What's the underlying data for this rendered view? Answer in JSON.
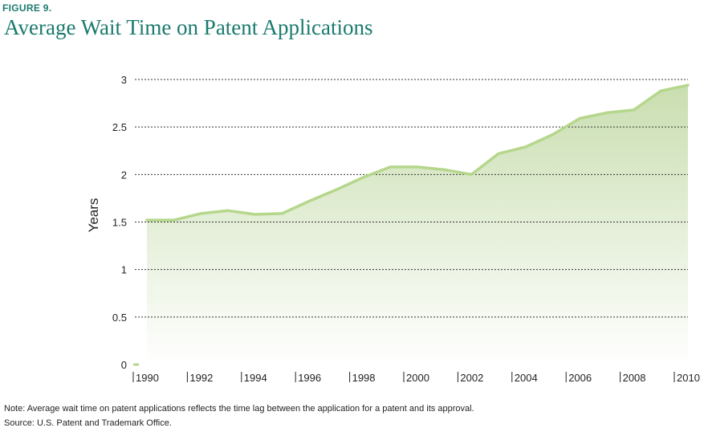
{
  "figure_label": "FIGURE 9.",
  "chart_data": {
    "type": "area",
    "title": "Average Wait Time on Patent Applications",
    "xlabel": "",
    "ylabel": "Years",
    "x": [
      1990,
      1991,
      1992,
      1993,
      1994,
      1995,
      1996,
      1997,
      1998,
      1999,
      2000,
      2001,
      2002,
      2003,
      2004,
      2005,
      2006,
      2007,
      2008,
      2009,
      2010
    ],
    "series": [
      {
        "name": "Average wait time",
        "values": [
          1.52,
          1.52,
          1.59,
          1.62,
          1.58,
          1.59,
          1.72,
          1.84,
          1.97,
          2.08,
          2.08,
          2.05,
          2.0,
          2.22,
          2.29,
          2.42,
          2.59,
          2.65,
          2.68,
          2.88,
          2.94
        ]
      }
    ],
    "xticks": [
      "1990",
      "1992",
      "1994",
      "1996",
      "1998",
      "2000",
      "2002",
      "2004",
      "2006",
      "2008",
      "2010"
    ],
    "yticks": [
      "0",
      "0.5",
      "1",
      "1.5",
      "2",
      "2.5",
      "3"
    ],
    "ylim": [
      0,
      3
    ],
    "xlim": [
      1990,
      2010
    ],
    "grid": true,
    "colors": {
      "line": "#b5d78c",
      "fill_top": "#c9deb0",
      "fill_bottom": "#ffffff",
      "grid": "#333333",
      "title": "#1a7a6e"
    }
  },
  "footnotes": {
    "note": "Note: Average wait time on patent applications reflects the time lag between the application for a patent and its approval.",
    "source": "Source: U.S. Patent and Trademark Office."
  }
}
